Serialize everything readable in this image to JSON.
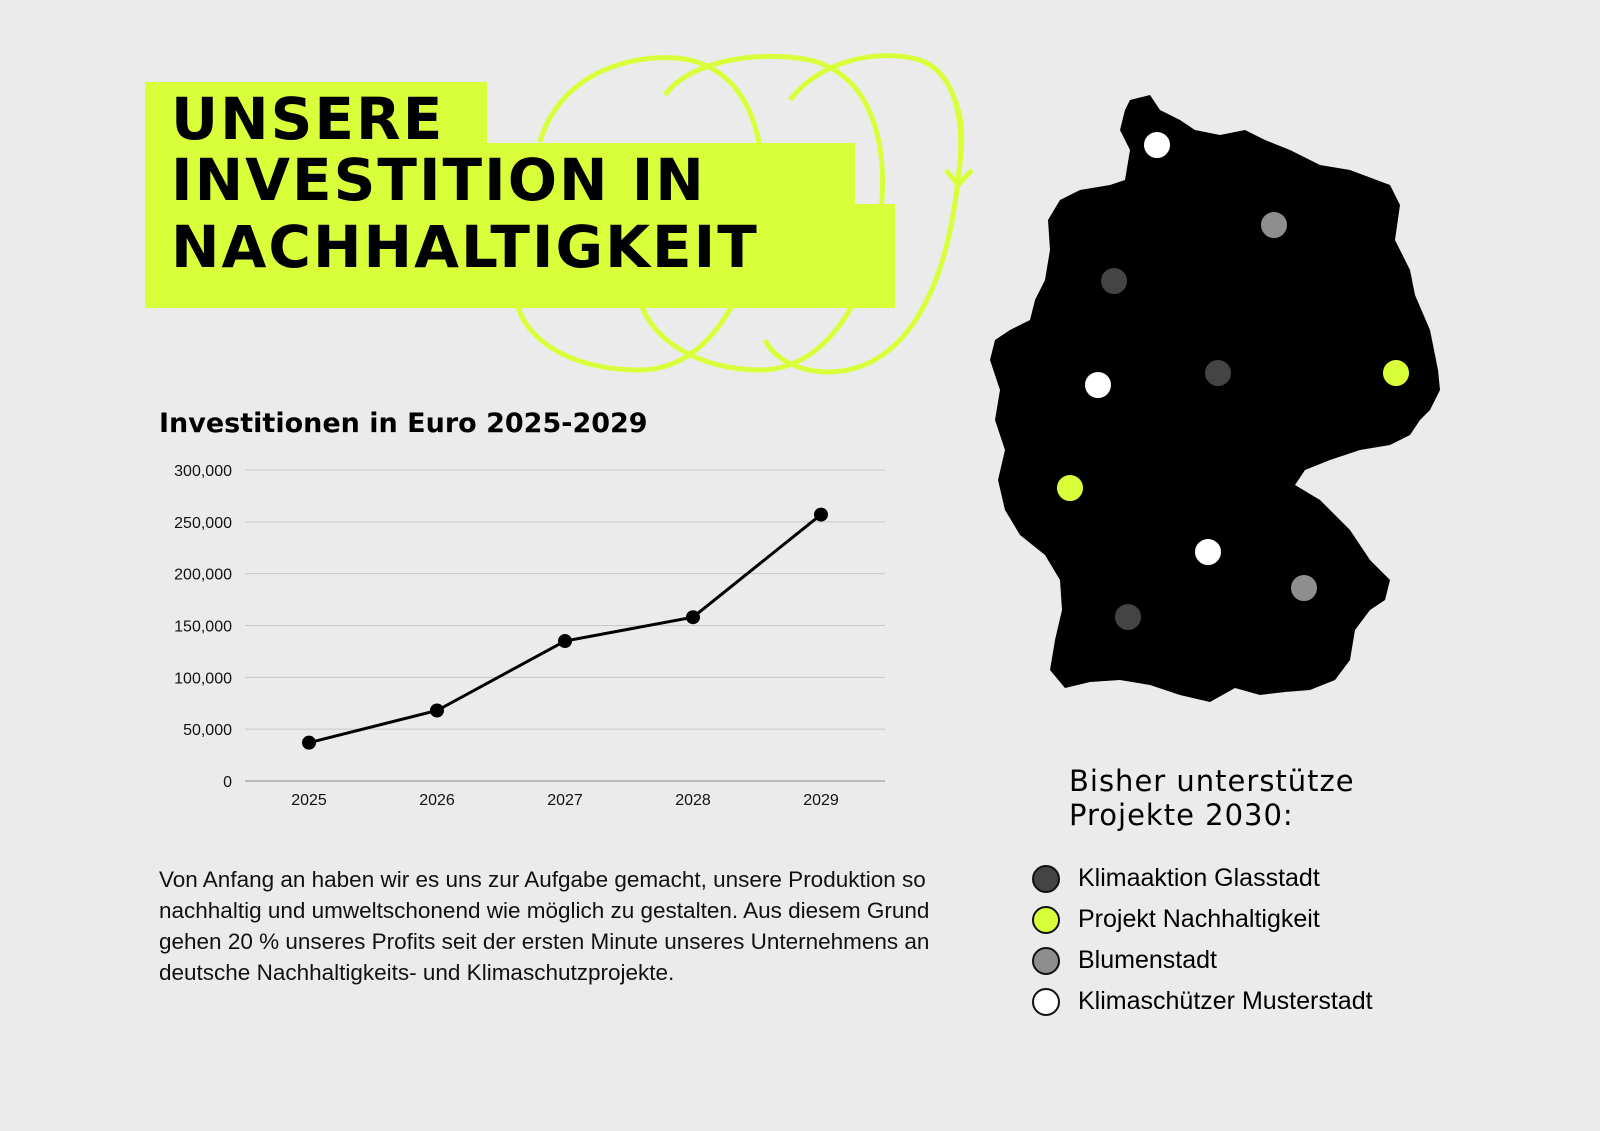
{
  "header": {
    "title_lines": [
      "UNSERE",
      "INVESTITION IN",
      "NACHHALTIGKEIT"
    ]
  },
  "colors": {
    "accent": "#d9ff3b",
    "background": "#ebebeb",
    "ink": "#000000"
  },
  "chart_data": {
    "type": "line",
    "title": "Investitionen in Euro 2025-2029",
    "xlabel": "",
    "ylabel": "",
    "categories": [
      "2025",
      "2026",
      "2027",
      "2028",
      "2029"
    ],
    "values": [
      37000,
      68000,
      135000,
      158000,
      257000
    ],
    "ylim": [
      0,
      300000
    ],
    "yticks": [
      "0",
      "50,000",
      "100,000",
      "150,000",
      "200,000",
      "250,000",
      "300,000"
    ],
    "grid": true,
    "legend": "none"
  },
  "description": "Von Anfang an haben wir es uns zur Aufgabe gemacht, unsere Produktion so nachhaltig und umweltschonend wie möglich zu gestalten. Aus diesem Grund gehen 20 % unseres Profits seit der ersten Minute unseres Unternehmens an deutsche Nachhaltigkeits- und Klimaschutzprojekte.",
  "map": {
    "region": "Deutschland",
    "markers": [
      {
        "category": "Klimaschützer Musterstadt"
      },
      {
        "category": "Blumenstadt"
      },
      {
        "category": "Klimaaktion Glasstadt"
      },
      {
        "category": "Klimaschützer Musterstadt"
      },
      {
        "category": "Klimaaktion Glasstadt"
      },
      {
        "category": "Projekt Nachhaltigkeit"
      },
      {
        "category": "Projekt Nachhaltigkeit"
      },
      {
        "category": "Klimaschützer Musterstadt"
      },
      {
        "category": "Blumenstadt"
      },
      {
        "category": "Klimaaktion Glasstadt"
      }
    ]
  },
  "legend": {
    "title_lines": [
      "Bisher unterstütze",
      "Projekte 2030:"
    ],
    "items": [
      {
        "label": "Klimaaktion Glasstadt",
        "color": "#444444"
      },
      {
        "label": "Projekt Nachhaltigkeit",
        "color": "#d9ff3b"
      },
      {
        "label": "Blumenstadt",
        "color": "#8e8e8e"
      },
      {
        "label": "Klimaschützer Musterstadt",
        "color": "#ffffff"
      }
    ]
  }
}
